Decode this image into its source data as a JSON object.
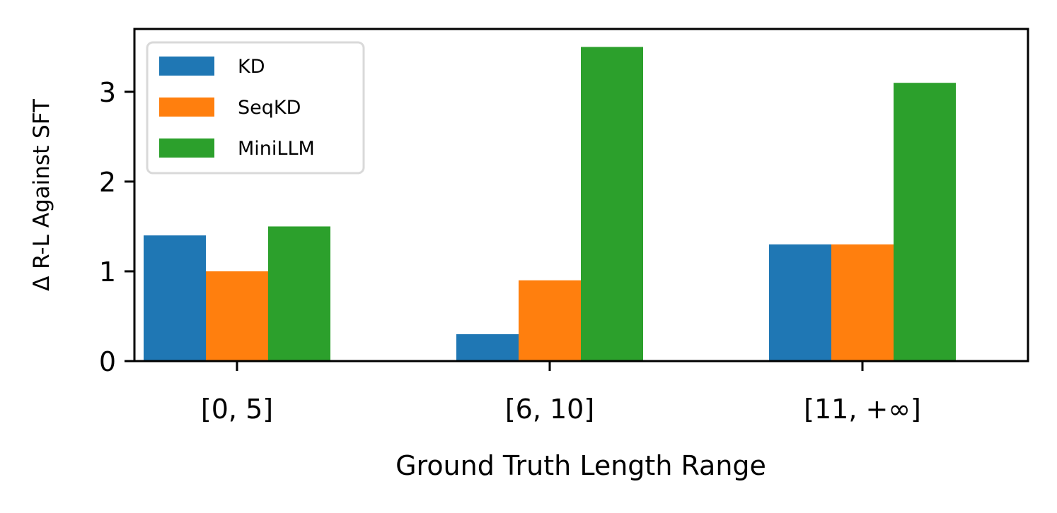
{
  "chart_data": {
    "type": "bar",
    "categories": [
      "[0, 5]",
      "[6, 10]",
      "[11, +∞]"
    ],
    "series": [
      {
        "name": "KD",
        "values": [
          1.4,
          0.3,
          1.3
        ],
        "color": "#1f77b4"
      },
      {
        "name": "SeqKD",
        "values": [
          1.0,
          0.9,
          1.3
        ],
        "color": "#ff7f0e"
      },
      {
        "name": "MiniLLM",
        "values": [
          1.5,
          3.5,
          3.1
        ],
        "color": "#2ca02c"
      }
    ],
    "title": "",
    "xlabel": "Ground Truth Length Range",
    "ylabel": "Δ R-L Against SFT",
    "ylim": [
      0,
      3.7
    ],
    "yticks": [
      0,
      1,
      2,
      3
    ],
    "grid": false,
    "legend_position": "upper-left"
  }
}
